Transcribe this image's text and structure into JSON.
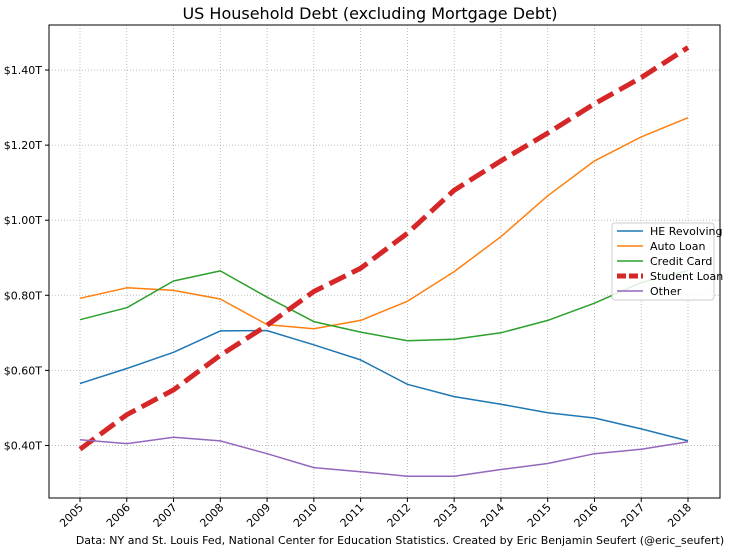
{
  "chart_data": {
    "type": "line",
    "title": "US Household Debt (excluding Mortgage Debt)",
    "xlabel": "",
    "ylabel": "",
    "x": [
      "2005",
      "2006",
      "2007",
      "2008",
      "2009",
      "2010",
      "2011",
      "2012",
      "2013",
      "2014",
      "2015",
      "2016",
      "2017",
      "2018"
    ],
    "ylim": [
      0.26,
      1.52
    ],
    "yticks": [
      0.4,
      0.6,
      0.8,
      1.0,
      1.2,
      1.4
    ],
    "ytick_labels": [
      "$0.40T",
      "$0.60T",
      "$0.80T",
      "$1.00T",
      "$1.20T",
      "$1.40T"
    ],
    "grid": true,
    "legend_position": "center-right",
    "series": [
      {
        "name": "HE Revolving",
        "color": "#1f77b4",
        "dashed": false,
        "values": [
          0.565,
          0.605,
          0.648,
          0.705,
          0.706,
          0.668,
          0.628,
          0.563,
          0.53,
          0.51,
          0.487,
          0.473,
          0.444,
          0.412
        ]
      },
      {
        "name": "Auto Loan",
        "color": "#ff7f0e",
        "dashed": false,
        "values": [
          0.792,
          0.82,
          0.813,
          0.79,
          0.722,
          0.711,
          0.733,
          0.784,
          0.863,
          0.956,
          1.065,
          1.158,
          1.222,
          1.273
        ]
      },
      {
        "name": "Credit Card",
        "color": "#2ca02c",
        "dashed": false,
        "values": [
          0.735,
          0.767,
          0.838,
          0.865,
          0.795,
          0.73,
          0.702,
          0.679,
          0.683,
          0.7,
          0.733,
          0.779,
          0.834,
          0.866
        ]
      },
      {
        "name": "Student Loan",
        "color": "#d62728",
        "dashed": true,
        "values": [
          0.39,
          0.482,
          0.548,
          0.64,
          0.72,
          0.81,
          0.872,
          0.965,
          1.08,
          1.158,
          1.232,
          1.31,
          1.38,
          1.46
        ]
      },
      {
        "name": "Other",
        "color": "#9467bd",
        "dashed": false,
        "values": [
          0.415,
          0.405,
          0.422,
          0.412,
          0.378,
          0.341,
          0.33,
          0.318,
          0.318,
          0.336,
          0.352,
          0.378,
          0.39,
          0.41
        ]
      }
    ],
    "caption": "Data: NY and St. Louis Fed, National Center for Education Statistics. Created by Eric Benjamin Seufert (@eric_seufert)"
  }
}
